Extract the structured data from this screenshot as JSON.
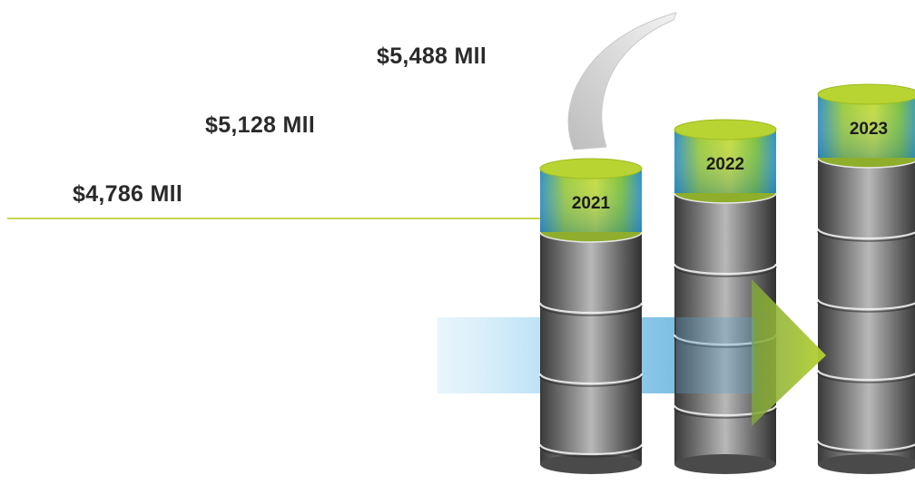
{
  "chart_data": {
    "type": "bar",
    "categories": [
      "2021",
      "2022",
      "2023"
    ],
    "values": [
      4786,
      5128,
      5488
    ],
    "value_labels": [
      "$4,786 Mll",
      "$5,128 Mll",
      "$5,488 Mll"
    ],
    "title": "",
    "xlabel": "",
    "ylabel": "",
    "ylim": [
      0,
      6000
    ],
    "grid": false,
    "legend": "none",
    "colors": {
      "cap": "#b8d432",
      "band_accent": "#2e9fd6",
      "cylinder_dark": "#3d3d3d",
      "cylinder_light": "#b3b3b3",
      "trend_line": "#c8d64a",
      "arrow_green": "#a8c82a",
      "arrow_blue": "#6fc3ea",
      "curve_arrow": "#d5d5d5"
    }
  }
}
